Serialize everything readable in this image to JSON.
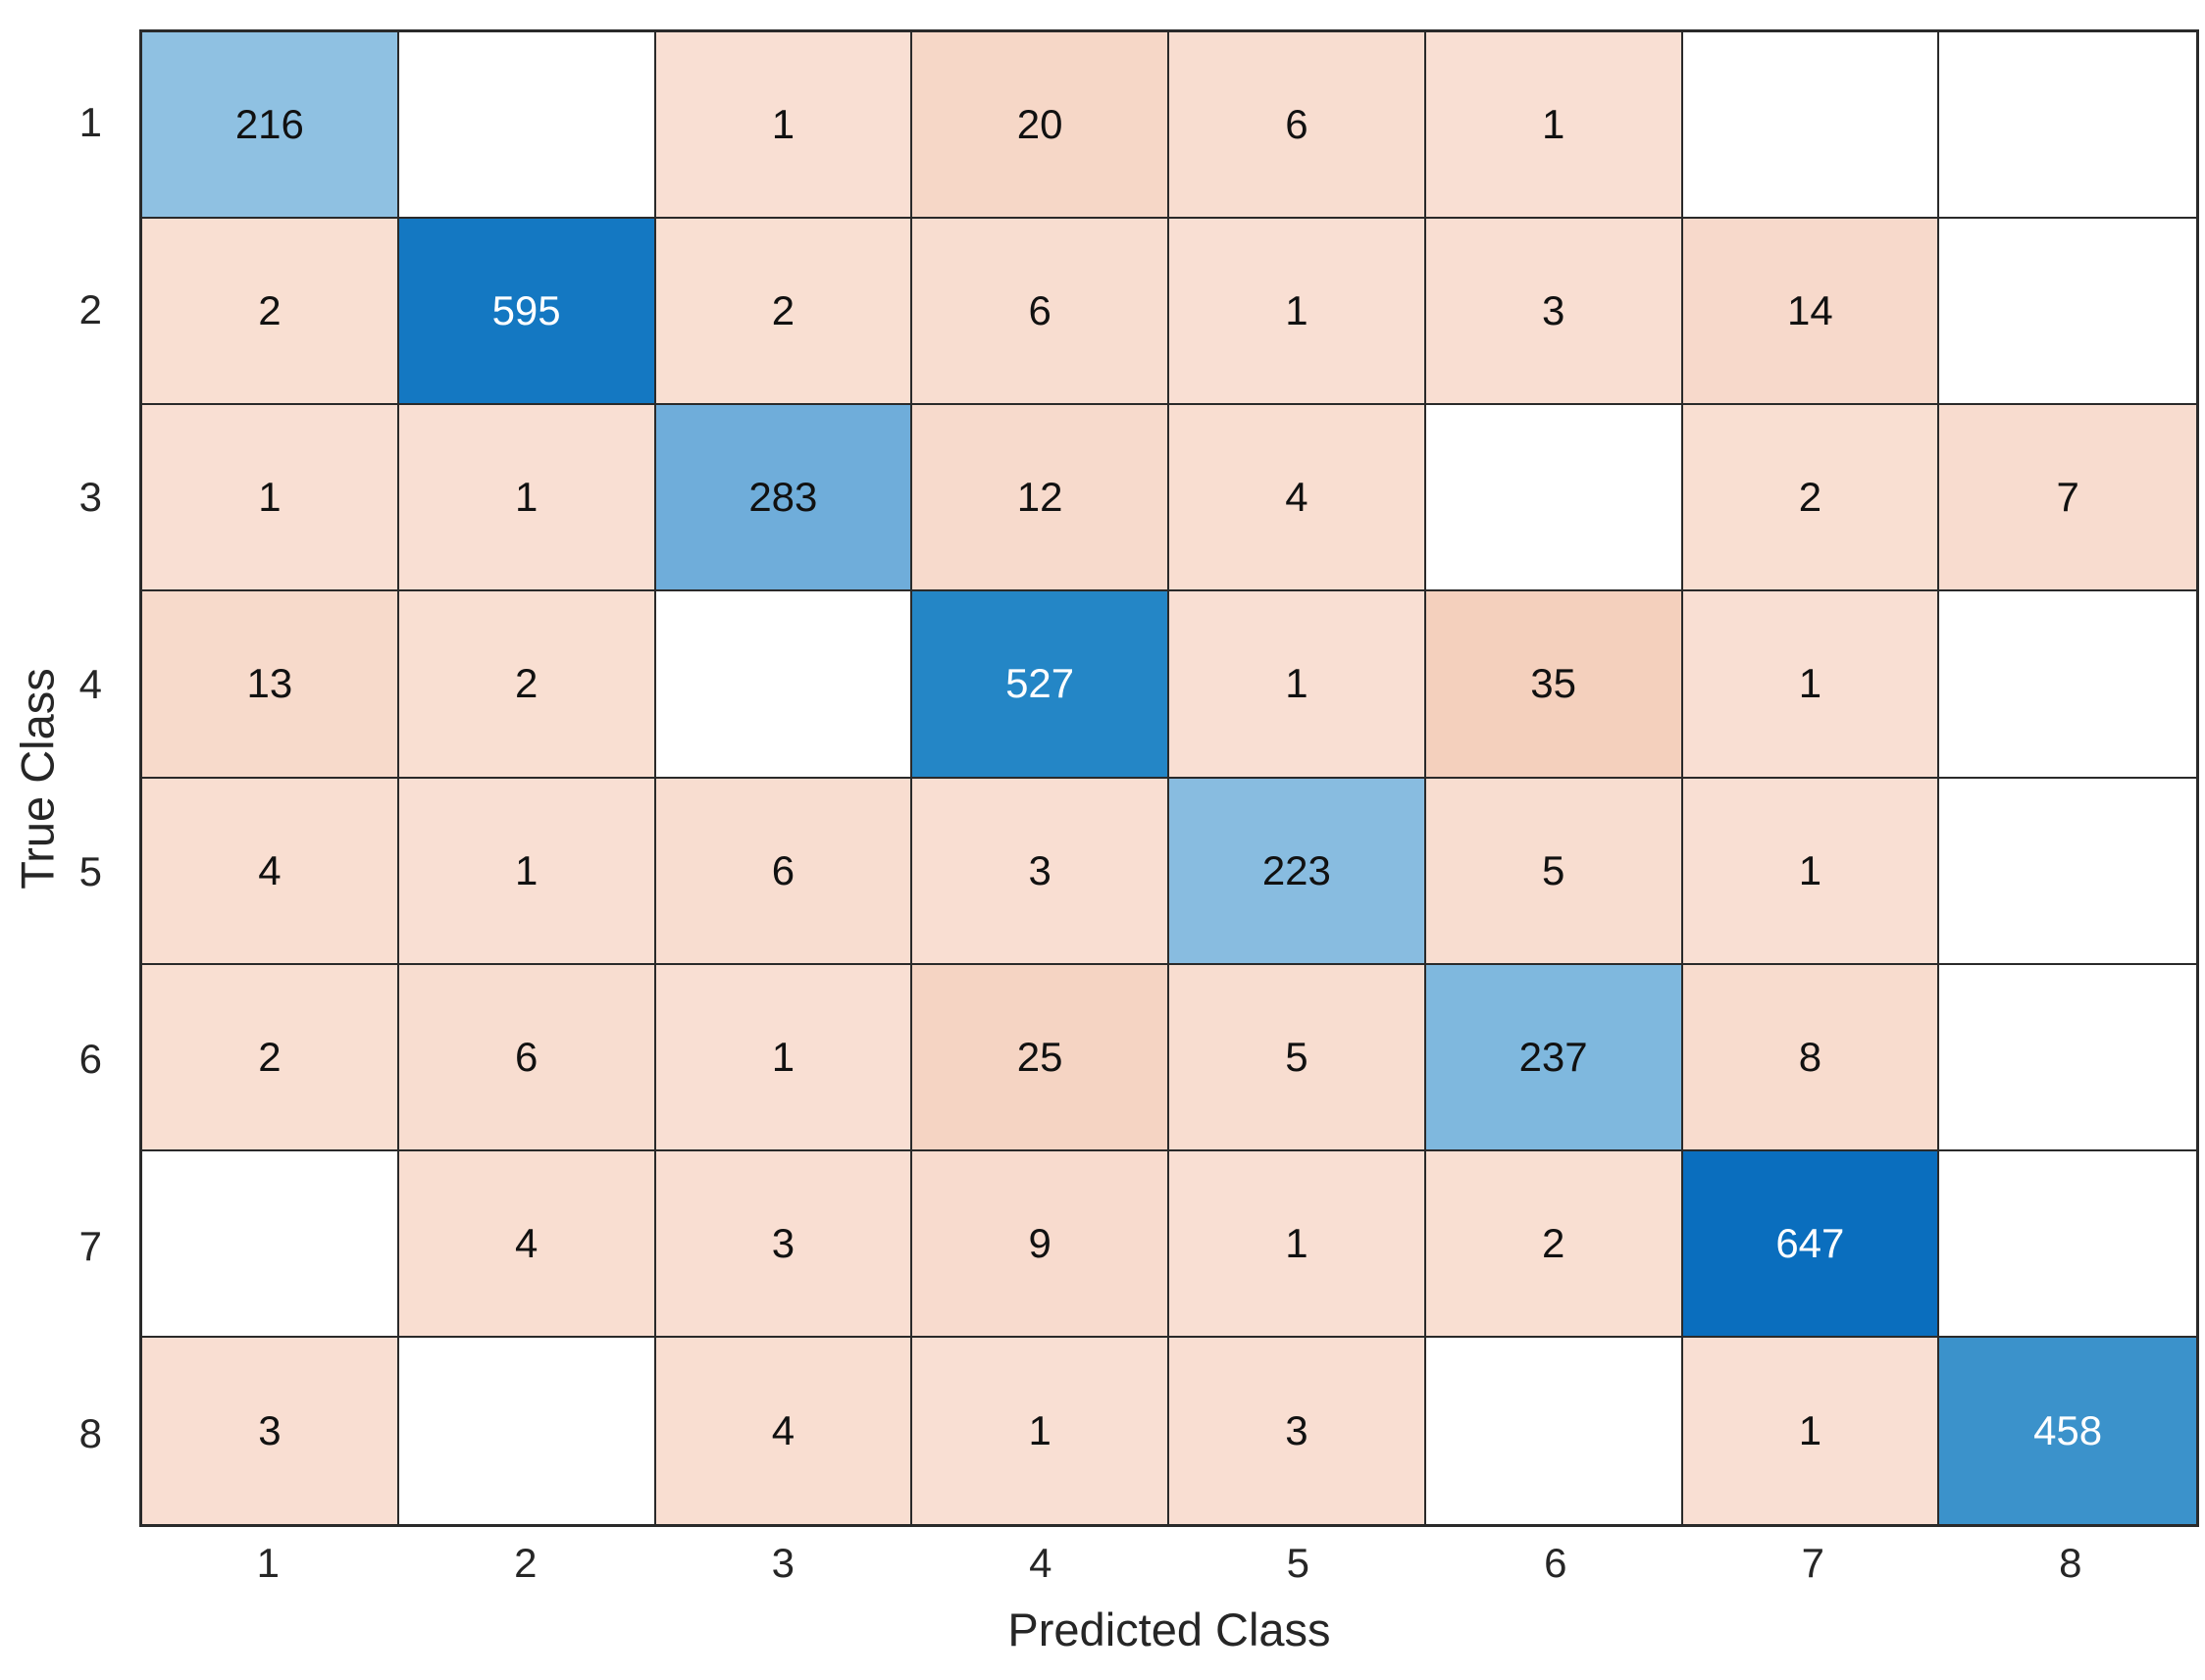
{
  "chart_data": {
    "type": "heatmap",
    "title": "",
    "xlabel": "Predicted Class",
    "ylabel": "True Class",
    "x_tick_labels": [
      "1",
      "2",
      "3",
      "4",
      "5",
      "6",
      "7",
      "8"
    ],
    "y_tick_labels": [
      "1",
      "2",
      "3",
      "4",
      "5",
      "6",
      "7",
      "8"
    ],
    "matrix": [
      [
        216,
        null,
        1,
        20,
        6,
        1,
        null,
        null
      ],
      [
        2,
        595,
        2,
        6,
        1,
        3,
        14,
        null
      ],
      [
        1,
        1,
        283,
        12,
        4,
        null,
        2,
        7
      ],
      [
        13,
        2,
        null,
        527,
        1,
        35,
        1,
        null
      ],
      [
        4,
        1,
        6,
        3,
        223,
        5,
        1,
        null
      ],
      [
        2,
        6,
        1,
        25,
        5,
        237,
        8,
        null
      ],
      [
        null,
        4,
        3,
        9,
        1,
        2,
        647,
        null
      ],
      [
        3,
        null,
        4,
        1,
        3,
        null,
        1,
        458
      ]
    ],
    "colors": {
      "diagonal_by_value": {
        "216": "#8fc1e2",
        "223": "#88bce0",
        "237": "#7fb8de",
        "283": "#6fadda",
        "458": "#3b92cb",
        "527": "#2486c6",
        "595": "#1478c2",
        "647": "#0a6ebe"
      },
      "offdiag_min_color": "#f9dfd3",
      "offdiag_max_color": "#f4d0bd",
      "offdiag_value_range": [
        1,
        35
      ],
      "empty_cell": "#ffffff",
      "grid_line": "#2a2a2a",
      "dark_text": "#111111",
      "light_text": "#ffffff",
      "white_text_threshold": 458,
      "axis_text": "#262626"
    },
    "layout": {
      "grid_on": true,
      "legend": "none"
    }
  }
}
